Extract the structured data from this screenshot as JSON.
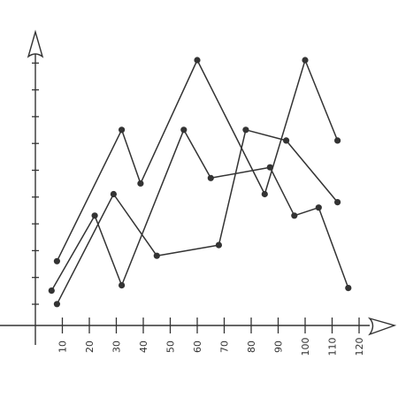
{
  "chart_data": {
    "type": "line",
    "title": "",
    "xlabel": "",
    "ylabel": "",
    "xlim": [
      0,
      123
    ],
    "ylim": [
      0,
      11
    ],
    "x_ticks": [
      10,
      20,
      30,
      40,
      50,
      60,
      70,
      80,
      90,
      100,
      110,
      120
    ],
    "y_tick_count": 10,
    "y_tick_labels_shown": false,
    "grid": false,
    "legend": "none",
    "line_color": "#333333",
    "series": [
      {
        "points": [
          {
            "x": 8,
            "y": 2.4
          },
          {
            "x": 32,
            "y": 7.3
          },
          {
            "x": 39,
            "y": 5.3
          },
          {
            "x": 60,
            "y": 9.9
          },
          {
            "x": 85,
            "y": 4.9
          },
          {
            "x": 100,
            "y": 9.9
          },
          {
            "x": 112,
            "y": 6.9
          }
        ]
      },
      {
        "points": [
          {
            "x": 6,
            "y": 1.3
          },
          {
            "x": 22,
            "y": 4.1
          },
          {
            "x": 32,
            "y": 1.5
          },
          {
            "x": 55,
            "y": 7.3
          },
          {
            "x": 65,
            "y": 5.5
          },
          {
            "x": 87,
            "y": 5.9
          },
          {
            "x": 96,
            "y": 4.1
          },
          {
            "x": 105,
            "y": 4.4
          },
          {
            "x": 116,
            "y": 1.4
          }
        ]
      },
      {
        "points": [
          {
            "x": 8,
            "y": 0.8
          },
          {
            "x": 29,
            "y": 4.9
          },
          {
            "x": 45,
            "y": 2.6
          },
          {
            "x": 68,
            "y": 3.0
          },
          {
            "x": 78,
            "y": 7.3
          },
          {
            "x": 93,
            "y": 6.9
          },
          {
            "x": 112,
            "y": 4.6
          }
        ]
      }
    ]
  }
}
